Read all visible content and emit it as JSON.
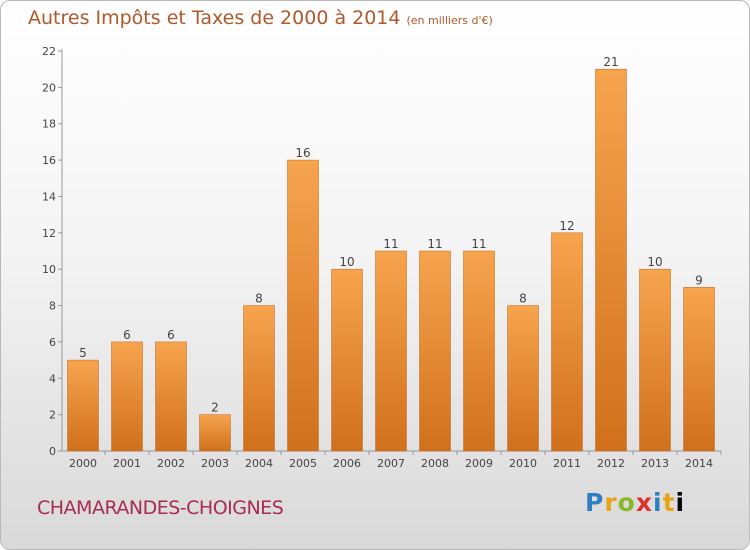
{
  "header": {
    "title": "Autres Impôts et Taxes de 2000 à 2014",
    "unit": "(en milliers d'€)"
  },
  "footer": {
    "commune": "CHAMARANDES-CHOIGNES",
    "logo_letters": [
      "P",
      "r",
      "o",
      "x",
      "i",
      "t",
      "i"
    ]
  },
  "colors": {
    "bar_light": "#f7a44e",
    "bar_dark": "#d0701c",
    "title": "#b1582a",
    "commune": "#a82b50"
  },
  "chart_data": {
    "type": "bar",
    "title": "Autres Impôts et Taxes de 2000 à 2014",
    "subtitle": "(en milliers d'€)",
    "categories": [
      "2000",
      "2001",
      "2002",
      "2003",
      "2004",
      "2005",
      "2006",
      "2007",
      "2008",
      "2009",
      "2010",
      "2011",
      "2012",
      "2013",
      "2014"
    ],
    "values": [
      5,
      6,
      6,
      2,
      8,
      16,
      10,
      11,
      11,
      11,
      8,
      12,
      21,
      10,
      9
    ],
    "value_labels": [
      "5",
      "6",
      "6",
      "2",
      "8",
      "16",
      "10",
      "11",
      "11",
      "11",
      "8",
      "12",
      "21",
      "10",
      "9"
    ],
    "yticks": [
      "0",
      "2",
      "4",
      "6",
      "8",
      "10",
      "12",
      "14",
      "16",
      "18",
      "20",
      "22"
    ],
    "ylim": [
      0,
      22
    ],
    "grid": false,
    "legend": "none"
  }
}
